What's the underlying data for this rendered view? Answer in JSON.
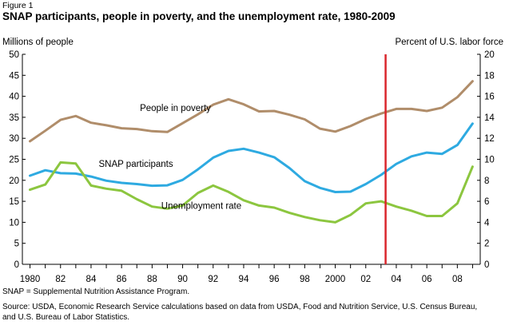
{
  "figure_label": "Figure 1",
  "title": "SNAP participants, people in poverty, and the unemployment rate, 1980-2009",
  "left_axis_label": "Millions of people",
  "right_axis_label": "Percent of U.S. labor force",
  "footnote": "SNAP = Supplemental Nutrition Assistance Program.",
  "source_line1": "Source: USDA, Economic Research Service calculations based on data from USDA, Food and Nutrition Service, U.S. Census Bureau,",
  "source_line2": "and U.S. Bureau of Labor Statistics.",
  "chart_data": {
    "type": "line",
    "x": [
      1980,
      1981,
      1982,
      1983,
      1984,
      1985,
      1986,
      1987,
      1988,
      1989,
      1990,
      1991,
      1992,
      1993,
      1994,
      1995,
      1996,
      1997,
      1998,
      1999,
      2000,
      2001,
      2002,
      2003,
      2004,
      2005,
      2006,
      2007,
      2008,
      2009
    ],
    "xlim": [
      1979.5,
      2009.5
    ],
    "x_tick_labels": [
      "1980",
      "82",
      "84",
      "86",
      "88",
      "90",
      "92",
      "94",
      "96",
      "98",
      "2000",
      "02",
      "04",
      "06",
      "08"
    ],
    "x_tick_values": [
      1980,
      1982,
      1984,
      1986,
      1988,
      1990,
      1992,
      1994,
      1996,
      1998,
      2000,
      2002,
      2004,
      2006,
      2008
    ],
    "y_left": {
      "ylim": [
        0,
        50
      ],
      "ticks": [
        0,
        5,
        10,
        15,
        20,
        25,
        30,
        35,
        40,
        45,
        50
      ]
    },
    "y_right": {
      "ylim": [
        0,
        20
      ],
      "ticks": [
        0,
        2,
        4,
        6,
        8,
        10,
        12,
        14,
        16,
        18,
        20
      ]
    },
    "series": [
      {
        "name": "People in poverty",
        "axis": "left",
        "color": "#b08d6a",
        "values": [
          29.3,
          31.8,
          34.4,
          35.3,
          33.7,
          33.1,
          32.4,
          32.2,
          31.7,
          31.5,
          33.6,
          35.7,
          38.0,
          39.3,
          38.1,
          36.4,
          36.5,
          35.6,
          34.5,
          32.3,
          31.6,
          32.9,
          34.6,
          35.9,
          37.0,
          37.0,
          36.5,
          37.3,
          39.8,
          43.6
        ],
        "label": "People in poverty",
        "label_pos": [
          1987.2,
          36.5
        ]
      },
      {
        "name": "SNAP participants",
        "axis": "left",
        "color": "#2eaae1",
        "values": [
          21.1,
          22.4,
          21.7,
          21.6,
          20.9,
          19.9,
          19.4,
          19.1,
          18.7,
          18.8,
          20.1,
          22.6,
          25.4,
          27.0,
          27.5,
          26.6,
          25.5,
          22.9,
          19.8,
          18.2,
          17.2,
          17.3,
          19.1,
          21.3,
          23.9,
          25.7,
          26.6,
          26.3,
          28.4,
          33.5
        ],
        "label": "SNAP participants",
        "label_pos": [
          1984.5,
          23.2
        ]
      },
      {
        "name": "Unemployment rate",
        "axis": "right",
        "color": "#8cc63f",
        "values": [
          7.1,
          7.6,
          9.7,
          9.6,
          7.5,
          7.2,
          7.0,
          6.2,
          5.5,
          5.3,
          5.6,
          6.8,
          7.5,
          6.9,
          6.1,
          5.6,
          5.4,
          4.9,
          4.5,
          4.2,
          4.0,
          4.7,
          5.8,
          6.0,
          5.5,
          5.1,
          4.6,
          4.6,
          5.8,
          9.3
        ],
        "label": "Unemployment rate",
        "label_pos": [
          1988.6,
          5.3
        ]
      }
    ],
    "reference_line": {
      "x": 2003.3,
      "color": "#d9262c"
    }
  }
}
